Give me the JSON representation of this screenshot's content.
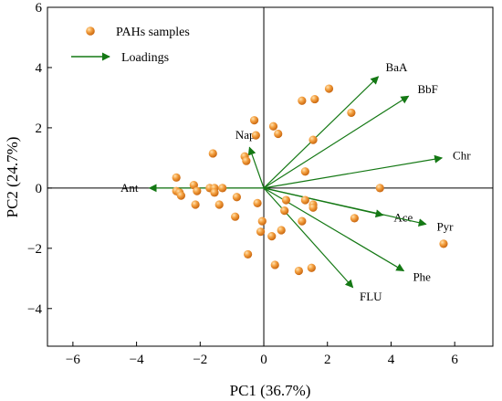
{
  "chart_data": {
    "type": "scatter",
    "xlabel": "PC1 (36.7%)",
    "ylabel": "PC2 (24.7%)",
    "xlim": [
      -6.8,
      7.2
    ],
    "ylim": [
      -5.25,
      6
    ],
    "xticks": [
      -6,
      -4,
      -2,
      0,
      2,
      4,
      6
    ],
    "yticks": [
      -4,
      -2,
      0,
      2,
      4,
      6
    ],
    "xtick_labels": [
      "−6",
      "−4",
      "−2",
      "0",
      "2",
      "4",
      "6"
    ],
    "ytick_labels": [
      "−4",
      "−2",
      "0",
      "2",
      "4",
      "6"
    ],
    "grid": false,
    "legend": {
      "placement": "top-left",
      "entries": [
        {
          "label": "PAHs samples",
          "marker": "circle",
          "color": "#F0962A"
        },
        {
          "label": "Loadings",
          "marker": "arrow",
          "color": "#147814"
        }
      ]
    },
    "samples": [
      {
        "x": -0.3,
        "y": 2.25
      },
      {
        "x": 0.3,
        "y": 2.05
      },
      {
        "x": -0.25,
        "y": 1.75
      },
      {
        "x": 0.45,
        "y": 1.8
      },
      {
        "x": 1.2,
        "y": 2.9
      },
      {
        "x": 1.6,
        "y": 2.95
      },
      {
        "x": 2.05,
        "y": 3.3
      },
      {
        "x": 2.75,
        "y": 2.5
      },
      {
        "x": 1.55,
        "y": 1.6
      },
      {
        "x": 1.3,
        "y": 0.55
      },
      {
        "x": -1.6,
        "y": 1.15
      },
      {
        "x": -0.6,
        "y": 1.05
      },
      {
        "x": -0.55,
        "y": 0.9
      },
      {
        "x": 3.65,
        "y": 0.0
      },
      {
        "x": -2.75,
        "y": 0.35
      },
      {
        "x": -2.75,
        "y": -0.1
      },
      {
        "x": -2.65,
        "y": -0.15
      },
      {
        "x": -2.6,
        "y": -0.25
      },
      {
        "x": -2.2,
        "y": 0.1
      },
      {
        "x": -2.1,
        "y": -0.1
      },
      {
        "x": -2.15,
        "y": -0.55
      },
      {
        "x": -1.7,
        "y": 0.0
      },
      {
        "x": -1.55,
        "y": 0.0
      },
      {
        "x": -1.55,
        "y": -0.15
      },
      {
        "x": -1.3,
        "y": 0.0
      },
      {
        "x": -1.4,
        "y": -0.55
      },
      {
        "x": -0.85,
        "y": -0.3
      },
      {
        "x": -0.2,
        "y": -0.5
      },
      {
        "x": -0.9,
        "y": -0.95
      },
      {
        "x": 0.7,
        "y": -0.4
      },
      {
        "x": 0.65,
        "y": -0.75
      },
      {
        "x": 1.3,
        "y": -0.4
      },
      {
        "x": 1.55,
        "y": -0.55
      },
      {
        "x": 1.55,
        "y": -0.65
      },
      {
        "x": 1.2,
        "y": -1.1
      },
      {
        "x": 2.85,
        "y": -1.0
      },
      {
        "x": -0.05,
        "y": -1.1
      },
      {
        "x": -0.1,
        "y": -1.45
      },
      {
        "x": 0.25,
        "y": -1.6
      },
      {
        "x": 0.55,
        "y": -1.4
      },
      {
        "x": -0.5,
        "y": -2.2
      },
      {
        "x": 0.35,
        "y": -2.55
      },
      {
        "x": 1.1,
        "y": -2.75
      },
      {
        "x": 1.5,
        "y": -2.65
      },
      {
        "x": 5.65,
        "y": -1.85
      }
    ],
    "loadings": [
      {
        "name": "BaA",
        "x": 3.6,
        "y": 3.7
      },
      {
        "name": "BbF",
        "x": 4.55,
        "y": 3.05
      },
      {
        "name": "Chr",
        "x": 5.6,
        "y": 1.0
      },
      {
        "name": "Nap",
        "x": -0.45,
        "y": 1.35
      },
      {
        "name": "Ant",
        "x": -3.6,
        "y": 0.0
      },
      {
        "name": "Ace",
        "x": 3.75,
        "y": -0.9
      },
      {
        "name": "Pyr",
        "x": 5.1,
        "y": -1.2
      },
      {
        "name": "Phe",
        "x": 4.4,
        "y": -2.75
      },
      {
        "name": "FLU",
        "x": 2.8,
        "y": -3.3
      }
    ]
  }
}
